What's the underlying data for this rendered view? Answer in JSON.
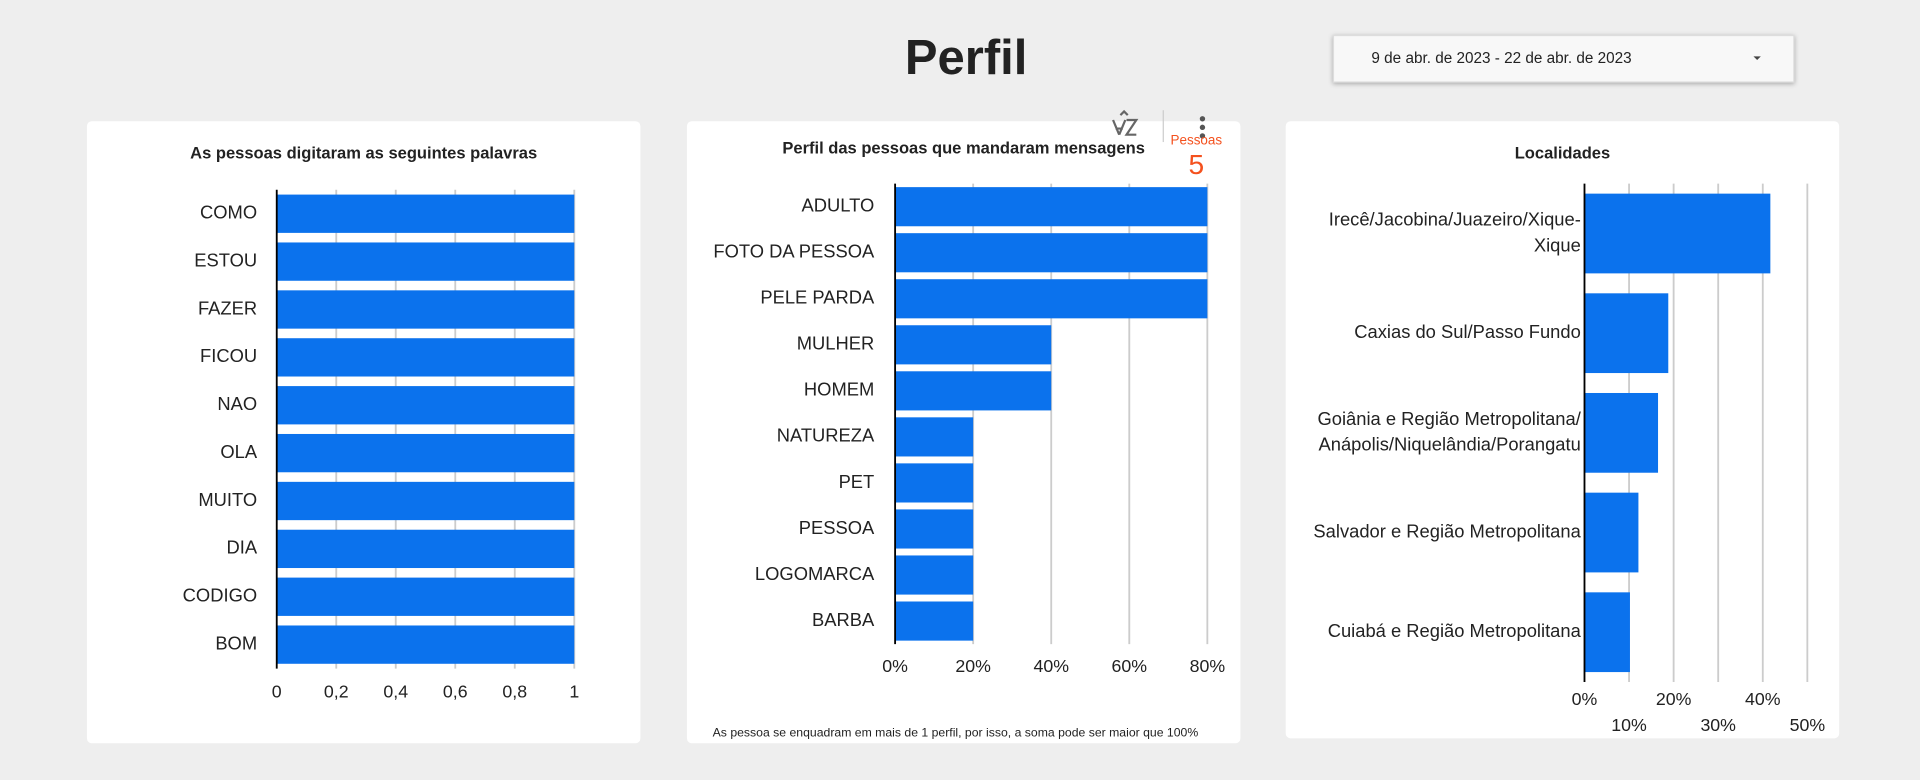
{
  "header": {
    "title": "Perfil",
    "date_range": "9 de abr. de 2023 - 22 de abr. de 2023"
  },
  "scorecard": {
    "label": "Pessoas",
    "value": 5
  },
  "chart_data": [
    {
      "type": "bar",
      "title": "As pessoas digitaram as seguintes palavras",
      "categories": [
        "COMO",
        "ESTOU",
        "FAZER",
        "FICOU",
        "NAO",
        "OLA",
        "MUITO",
        "DIA",
        "CODIGO",
        "BOM"
      ],
      "values": [
        1,
        1,
        1,
        1,
        1,
        1,
        1,
        1,
        1,
        1
      ],
      "color": "#0b72ed",
      "xlim": [
        0,
        1
      ],
      "xticks": [
        0,
        {
          "value": 0.2,
          "label": "0,2"
        },
        {
          "value": 0.4,
          "label": "0,4"
        },
        {
          "value": 0.6,
          "label": "0,6"
        },
        {
          "value": 0.8,
          "label": "0,8"
        },
        1
      ],
      "grid": true
    },
    {
      "type": "bar",
      "title": "Perfil das pessoas que mandaram mensagens",
      "categories": [
        "ADULTO",
        "FOTO DA PESSOA",
        "PELE PARDA",
        "MULHER",
        "HOMEM",
        "NATUREZA",
        "PET",
        "PESSOA",
        "LOGOMARCA",
        "BARBA"
      ],
      "values": [
        80,
        80,
        80,
        40,
        40,
        20,
        20,
        20,
        20,
        20
      ],
      "color": "#0b72ed",
      "xlim": [
        0,
        80
      ],
      "xticks": [
        {
          "value": 0,
          "label": "0%"
        },
        {
          "value": 20,
          "label": "20%"
        },
        {
          "value": 40,
          "label": "40%"
        },
        {
          "value": 60,
          "label": "60%"
        },
        {
          "value": 80,
          "label": "80%"
        }
      ],
      "grid": true,
      "note": "As  pessoa se enquadram em mais de 1 perfil, por isso, a soma pode ser maior que 100%"
    },
    {
      "type": "bar",
      "title": "Localidades",
      "categories": [
        "Irecê/Jacobina/Juazeiro/Xique-Xique",
        "Caxias do Sul/Passo Fundo",
        "Goiânia e Região Metropolitana/Anápolis/Niquelândia/Porangatu",
        "Salvador e Região Metropolitana",
        "Cuiabá e Região Metropolitana"
      ],
      "values": [
        41.7,
        18.8,
        16.5,
        12.1,
        10.2
      ],
      "color": "#0b72ed",
      "xlim": [
        0,
        50
      ],
      "xticks": [
        {
          "value": 0,
          "label": "0%"
        },
        {
          "value": 10,
          "label": "10%"
        },
        {
          "value": 20,
          "label": "20%"
        },
        {
          "value": 30,
          "label": "30%"
        },
        {
          "value": 40,
          "label": "40%"
        },
        {
          "value": 50,
          "label": "50%"
        }
      ],
      "grid": true
    }
  ]
}
